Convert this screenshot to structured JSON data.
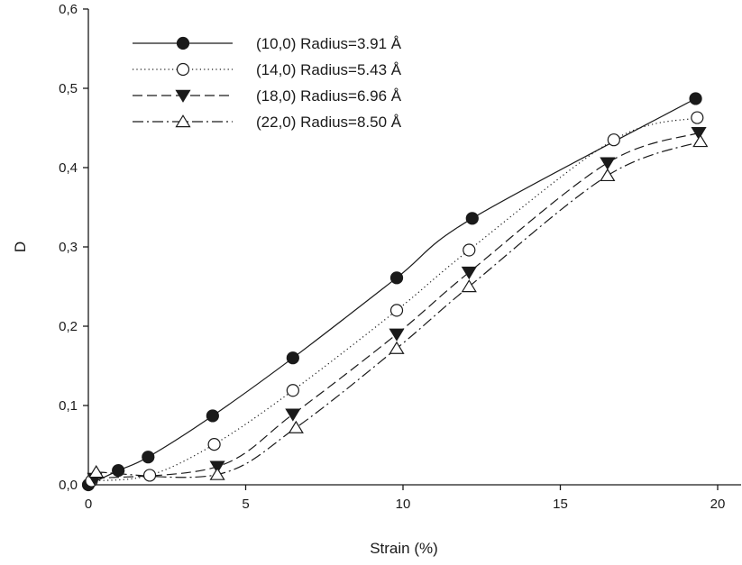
{
  "chart_data": {
    "type": "line",
    "xlabel": "Strain (%)",
    "ylabel": "D",
    "xlim": [
      0,
      20
    ],
    "ylim": [
      0,
      0.6
    ],
    "x_ticks": [
      "0",
      "5",
      "10",
      "15",
      "20"
    ],
    "y_ticks": [
      "0,0",
      "0,1",
      "0,2",
      "0,3",
      "0,4",
      "0,5",
      "0,6"
    ],
    "grid": false,
    "legend_position": "top-left",
    "series": [
      {
        "name": "(10,0) Radius=3.91 Å",
        "marker": "filled-circle",
        "line_style": "solid",
        "x": [
          0,
          0.95,
          1.9,
          3.95,
          6.5,
          9.8,
          12.2,
          19.3
        ],
        "y": [
          0.0,
          0.018,
          0.035,
          0.087,
          0.16,
          0.261,
          0.336,
          0.487
        ]
      },
      {
        "name": "(14,0) Radius=5.43 Å",
        "marker": "open-circle",
        "line_style": "dotted",
        "x": [
          0.1,
          1.95,
          4.0,
          6.5,
          9.8,
          12.1,
          16.7,
          19.35
        ],
        "y": [
          0.005,
          0.012,
          0.051,
          0.119,
          0.22,
          0.296,
          0.435,
          0.463
        ]
      },
      {
        "name": "(18,0) Radius=6.96 Å",
        "marker": "filled-triangle-down",
        "line_style": "dashed",
        "x": [
          0.2,
          4.1,
          6.5,
          9.8,
          12.1,
          16.5,
          19.4
        ],
        "y": [
          0.008,
          0.023,
          0.089,
          0.19,
          0.268,
          0.406,
          0.444
        ]
      },
      {
        "name": "(22,0) Radius=8.50 Å",
        "marker": "open-triangle-up",
        "line_style": "dash-dot",
        "x": [
          0.25,
          4.1,
          6.6,
          9.8,
          12.1,
          16.5,
          19.45
        ],
        "y": [
          0.016,
          0.013,
          0.072,
          0.172,
          0.25,
          0.39,
          0.433
        ]
      }
    ]
  }
}
